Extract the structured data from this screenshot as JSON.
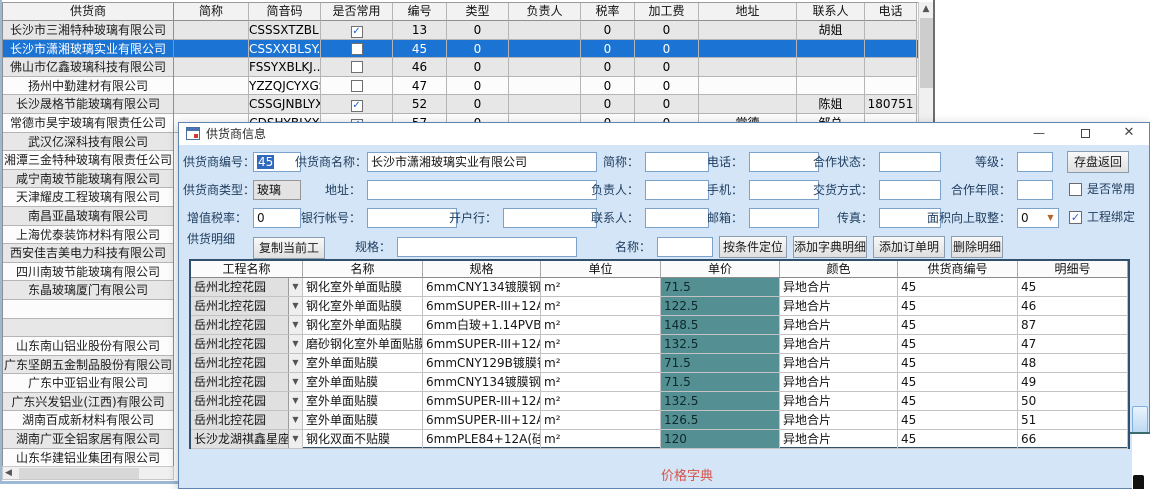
{
  "colors": {
    "selection_blue": "#1b74d4",
    "price_column_teal": "#549093",
    "note_red": "#d9534a",
    "dialog_bg": "#d3e5f6"
  },
  "top_grid": {
    "headers": [
      "供货商",
      "简称",
      "简音码",
      "是否常用",
      "编号",
      "类型",
      "负责人",
      "税率",
      "加工费",
      "地址",
      "联系人",
      "电话"
    ],
    "rows": [
      {
        "supplier": "长沙市三湘特种玻璃有限公司",
        "short": "",
        "pinyin": "CSSSXTZBL...",
        "common": true,
        "id": "13",
        "type": "0",
        "manager": "",
        "tax": "0",
        "fee": "0",
        "address": "",
        "contact": "胡姐",
        "phone": "",
        "selected": false
      },
      {
        "supplier": "长沙市潇湘玻璃实业有限公司",
        "short": "",
        "pinyin": "CSSXXBLSY...",
        "common": false,
        "id": "45",
        "type": "0",
        "manager": "",
        "tax": "0",
        "fee": "0",
        "address": "",
        "contact": "",
        "phone": "",
        "selected": true
      },
      {
        "supplier": "佛山市亿鑫玻璃科技有限公司",
        "short": "",
        "pinyin": "FSSYXBLKJ...",
        "common": false,
        "id": "46",
        "type": "0",
        "manager": "",
        "tax": "0",
        "fee": "0",
        "address": "",
        "contact": "",
        "phone": "",
        "selected": false
      },
      {
        "supplier": "扬州中勤建材有限公司",
        "short": "",
        "pinyin": "YZZQJCYXGS",
        "common": false,
        "id": "47",
        "type": "0",
        "manager": "",
        "tax": "0",
        "fee": "0",
        "address": "",
        "contact": "",
        "phone": "",
        "selected": false
      },
      {
        "supplier": "长沙晟格节能玻璃有限公司",
        "short": "",
        "pinyin": "CSSGJNBLYXGS",
        "common": true,
        "id": "52",
        "type": "0",
        "manager": "",
        "tax": "0",
        "fee": "0",
        "address": "",
        "contact": "陈姐",
        "phone": "180751",
        "selected": false
      },
      {
        "supplier": "常德市昊宇玻璃有限责任公司",
        "short": "",
        "pinyin": "CDSHYBLYX",
        "common": true,
        "id": "57",
        "type": "0",
        "manager": "",
        "tax": "0",
        "fee": "0",
        "address": "常德",
        "contact": "邹总",
        "phone": "",
        "selected": false
      }
    ]
  },
  "left_list": [
    "武汉亿深科技有限公司",
    "湘潭三金特种玻璃有限责任公司",
    "咸宁南玻节能玻璃有限公司",
    "天津耀皮工程玻璃有限公司",
    "南昌亚晶玻璃有限公司",
    "上海优泰装饰材料有限公司",
    "西安佳吉美电力科技有限公司",
    "四川南玻节能玻璃有限公司",
    "东晶玻璃厦门有限公司",
    "",
    "",
    "山东南山铝业股份有限公司",
    "广东坚朗五金制品股份有限公司",
    "广东中亚铝业有限公司",
    "广东兴发铝业(江西)有限公司",
    "湖南百成新材料有限公司",
    "湖南广亚全铝家居有限公司",
    "山东华建铝业集团有限公司"
  ],
  "dialog": {
    "title": "供货商信息",
    "fields": {
      "supplier_id": {
        "label": "供货商编号：",
        "value": "45"
      },
      "supplier_name": {
        "label": "供货商名称：",
        "value": "长沙市潇湘玻璃实业有限公司"
      },
      "short_name": {
        "label": "简称：",
        "value": ""
      },
      "phone": {
        "label": "电话：",
        "value": ""
      },
      "coop_status": {
        "label": "合作状态：",
        "value": ""
      },
      "grade": {
        "label": "等级：",
        "value": ""
      },
      "supplier_type": {
        "label": "供货商类型：",
        "value": "玻璃"
      },
      "address": {
        "label": "地址：",
        "value": ""
      },
      "manager": {
        "label": "负责人：",
        "value": ""
      },
      "mobile": {
        "label": "手机：",
        "value": ""
      },
      "delivery": {
        "label": "交货方式：",
        "value": ""
      },
      "coop_years": {
        "label": "合作年限：",
        "value": ""
      },
      "vat_rate": {
        "label": "增值税率：",
        "value": "0"
      },
      "bank_account": {
        "label": "银行帐号：",
        "value": ""
      },
      "bank_name": {
        "label": "开户行：",
        "value": ""
      },
      "contact": {
        "label": "联系人：",
        "value": ""
      },
      "email": {
        "label": "邮箱：",
        "value": ""
      },
      "fax": {
        "label": "传真：",
        "value": ""
      },
      "area_round_up": {
        "label": "面积向上取整：",
        "value": "0"
      }
    },
    "save_button": "存盘返回",
    "common_checkbox_label": "是否常用",
    "bind_checkbox_label": "工程绑定",
    "detail_section": {
      "label": "供货明细",
      "copy_button": "复制当前工程",
      "spec_label": "规格：",
      "spec_value": "",
      "name_label": "名称：",
      "name_value": "",
      "locate_button": "按条件定位",
      "add_dict_button": "添加字典明细",
      "add_order_button": "添加订单明细",
      "delete_button": "删除明细"
    },
    "detail_grid": {
      "headers": [
        "工程名称",
        "名称",
        "规格",
        "单位",
        "单价",
        "颜色",
        "供货商编号",
        "明细号"
      ],
      "rows": [
        {
          "project": "岳州北控花园",
          "name": "钢化室外单面贴膜",
          "spec": "6mmCNY134镀膜钢化",
          "unit": "m²",
          "price": "71.5",
          "color": "异地合片",
          "supplier_id": "45",
          "detail_id": "45"
        },
        {
          "project": "岳州北控花园",
          "name": "钢化室外单面贴膜",
          "spec": "6mmSUPER-III+12A(硅...",
          "unit": "m²",
          "price": "122.5",
          "color": "异地合片",
          "supplier_id": "45",
          "detail_id": "46"
        },
        {
          "project": "岳州北控花园",
          "name": "钢化室外单面贴膜",
          "spec": "6mm白玻+1.14PVB+6mm...",
          "unit": "m²",
          "price": "148.5",
          "color": "异地合片",
          "supplier_id": "45",
          "detail_id": "87"
        },
        {
          "project": "岳州北控花园",
          "name": "磨砂钢化室外单面贴膜",
          "spec": "6mmSUPER-III+12A(硅...",
          "unit": "m²",
          "price": "132.5",
          "color": "异地合片",
          "supplier_id": "45",
          "detail_id": "47"
        },
        {
          "project": "岳州北控花园",
          "name": "室外单面贴膜",
          "spec": "6mmCNY129B镀膜钢化",
          "unit": "m²",
          "price": "71.5",
          "color": "异地合片",
          "supplier_id": "45",
          "detail_id": "48"
        },
        {
          "project": "岳州北控花园",
          "name": "室外单面贴膜",
          "spec": "6mmCNY134镀膜钢化",
          "unit": "m²",
          "price": "71.5",
          "color": "异地合片",
          "supplier_id": "45",
          "detail_id": "49"
        },
        {
          "project": "岳州北控花园",
          "name": "室外单面贴膜",
          "spec": "6mmSUPER-III+12A(硅...",
          "unit": "m²",
          "price": "132.5",
          "color": "异地合片",
          "supplier_id": "45",
          "detail_id": "50"
        },
        {
          "project": "岳州北控花园",
          "name": "室外单面贴膜",
          "spec": "6mmSUPER-III+12A(硅...",
          "unit": "m²",
          "price": "126.5",
          "color": "异地合片",
          "supplier_id": "45",
          "detail_id": "51"
        },
        {
          "project": "长沙龙湖祺鑫星座",
          "name": "钢化双面不贴膜",
          "spec": "6mmPLE84+12A(硅酮胶...",
          "unit": "m²",
          "price": "120",
          "color": "异地合片",
          "supplier_id": "45",
          "detail_id": "66"
        }
      ]
    },
    "footer_note": "价格字典"
  }
}
